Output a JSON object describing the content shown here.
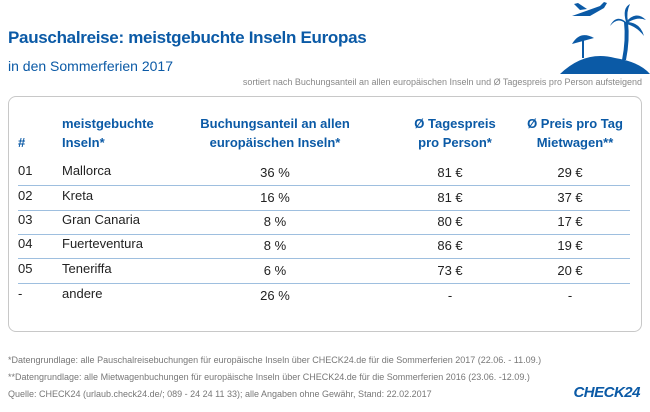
{
  "title": "Pauschalreise: meistgebuchte Inseln Europas",
  "subtitle": "in den Sommerferien 2017",
  "sort_note": "sortiert nach Buchungsanteil an allen europäischen Inseln und Ø Tagespreis pro Person aufsteigend",
  "icon": "airplane-palm-island-icon",
  "accent_color": "#0b5aa6",
  "chart_data": {
    "type": "table",
    "columns": [
      "#",
      "meistgebuchte Inseln*",
      "Buchungsanteil an allen europäischen Inseln*",
      "Ø Tagespreis pro Person*",
      "Ø Preis pro Tag Mietwagen**"
    ],
    "header_lines": [
      [
        "#"
      ],
      [
        "meistgebuchte",
        "Inseln*"
      ],
      [
        "Buchungsanteil an allen",
        "europäischen Inseln*"
      ],
      [
        "Ø Tagespreis",
        "pro Person*"
      ],
      [
        "Ø Preis pro Tag",
        "Mietwagen**"
      ]
    ],
    "rows": [
      [
        "01",
        "Mallorca",
        "36 %",
        "81 €",
        "29 €"
      ],
      [
        "02",
        "Kreta",
        "16 %",
        "81 €",
        "37 €"
      ],
      [
        "03",
        "Gran Canaria",
        "8 %",
        "80 €",
        "17 €"
      ],
      [
        "04",
        "Fuerteventura",
        "8 %",
        "86 €",
        "19 €"
      ],
      [
        "05",
        "Teneriffa",
        "6 %",
        "73 €",
        "20 €"
      ],
      [
        "-",
        "andere",
        "26 %",
        "-",
        "-"
      ]
    ]
  },
  "footnotes": [
    "*Datengrundlage: alle Pauschalreisebuchungen für europäische Inseln über CHECK24.de für die Sommerferien 2017 (22.06. - 11.09.)",
    "**Datengrundlage: alle Mietwagenbuchungen für europäische Inseln über CHECK24.de für die Sommerferien 2016 (23.06. -12.09.)",
    "Quelle: CHECK24 (urlaub.check24.de/; 089 - 24 24 11 33); alle Angaben ohne Gewähr, Stand: 22.02.2017"
  ],
  "logo": "CHECK24"
}
